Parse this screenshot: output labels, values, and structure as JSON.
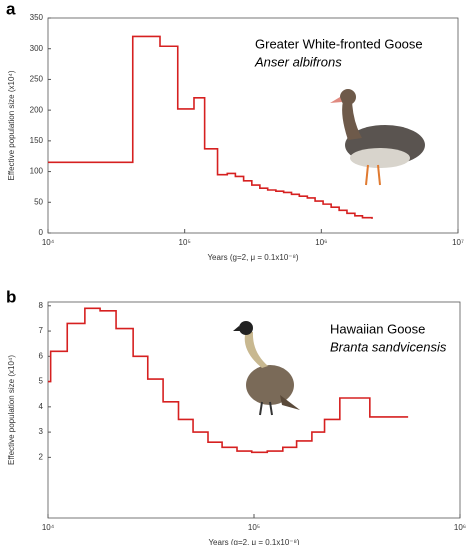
{
  "chart_data": [
    {
      "type": "step",
      "panel_label": "a",
      "annotation": [
        "Greater White-fronted Goose",
        "Anser albifrons"
      ],
      "xlabel": "Years (g=2, μ = 0.1x10⁻⁸)",
      "ylabel": "Effective population size (x10⁴)",
      "xlog": true,
      "xlim": [
        10000,
        10000000
      ],
      "xticks": [
        {
          "value": 10000,
          "label": "10⁴"
        },
        {
          "value": 100000,
          "label": "10⁵"
        },
        {
          "value": 1000000,
          "label": "10⁶"
        },
        {
          "value": 10000000,
          "label": "10⁷"
        }
      ],
      "ylim": [
        0,
        350
      ],
      "yticks": [
        0,
        50,
        100,
        150,
        200,
        250,
        300,
        350
      ],
      "color": "#d62020",
      "x": [
        10000,
        41700,
        66000,
        89000,
        117000,
        140000,
        174000,
        205000,
        235000,
        270000,
        310000,
        355000,
        405000,
        465000,
        530000,
        605000,
        690000,
        790000,
        900000,
        1030000,
        1180000,
        1350000,
        1540000,
        1760000,
        2000000,
        2350000
      ],
      "values": [
        115,
        320,
        304,
        202,
        220,
        137,
        95,
        97,
        92,
        85,
        78,
        73,
        70,
        68,
        66,
        63,
        60,
        57,
        52,
        47,
        42,
        37,
        32,
        28,
        25,
        23
      ]
    },
    {
      "type": "step",
      "panel_label": "b",
      "annotation": [
        "Hawaiian Goose",
        "Branta sandvicensis"
      ],
      "xlabel": "Years (g=2, μ = 0.1x10⁻⁸)",
      "ylabel": "Effective population size (x10⁴)",
      "xlog": true,
      "xlim": [
        10000,
        1000000
      ],
      "xticks": [
        {
          "value": 10000,
          "label": "10⁴"
        },
        {
          "value": 100000,
          "label": "10⁵"
        },
        {
          "value": 1000000,
          "label": "10⁶"
        }
      ],
      "ylim": [
        -0.4,
        8.15
      ],
      "yticks": [
        2,
        3,
        4,
        5,
        6,
        7,
        8
      ],
      "color": "#d62020",
      "x": [
        10000,
        10300,
        12400,
        15100,
        17900,
        21400,
        25900,
        30500,
        36200,
        43000,
        50600,
        59800,
        70000,
        82700,
        97500,
        116000,
        138000,
        161000,
        191000,
        220000,
        261000,
        365000,
        560000
      ],
      "values": [
        5.0,
        6.2,
        7.3,
        7.9,
        7.8,
        7.1,
        6.0,
        5.1,
        4.2,
        3.5,
        3.0,
        2.6,
        2.4,
        2.25,
        2.2,
        2.25,
        2.4,
        2.65,
        3.0,
        3.5,
        4.35,
        3.6,
        3.6
      ]
    }
  ]
}
